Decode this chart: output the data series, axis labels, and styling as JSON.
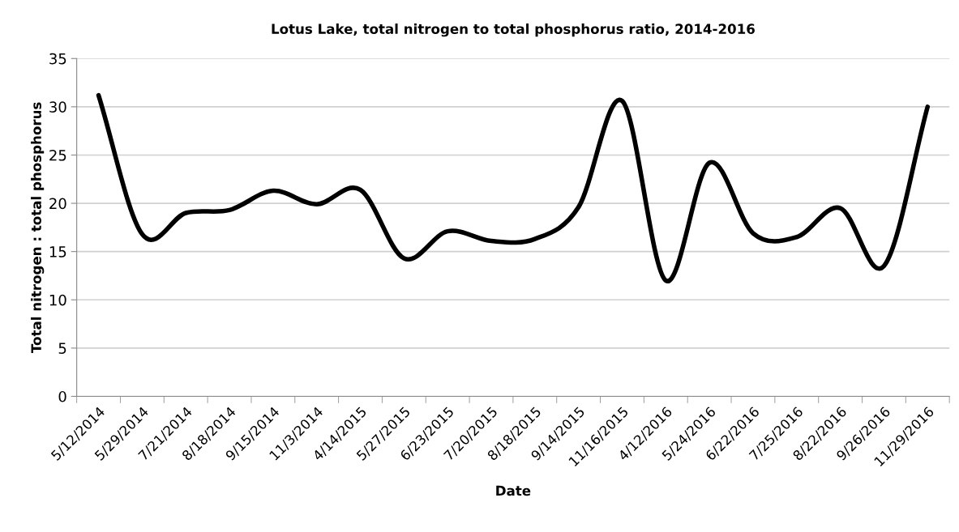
{
  "chart_data": {
    "type": "line",
    "title": "Lotus Lake, total nitrogen to total phosphorus ratio, 2014-2016",
    "xlabel": "Date",
    "ylabel": "Total nitrogen : total phosphorus",
    "categories": [
      "5/12/2014",
      "5/29/2014",
      "7/21/2014",
      "8/18/2014",
      "9/15/2014",
      "11/3/2014",
      "4/14/2015",
      "5/27/2015",
      "6/23/2015",
      "7/20/2015",
      "8/18/2015",
      "9/14/2015",
      "11/16/2015",
      "4/12/2016",
      "5/24/2016",
      "6/22/2016",
      "7/25/2016",
      "8/22/2016",
      "9/26/2016",
      "11/29/2016"
    ],
    "series": [
      {
        "color": "#000000",
        "values": [
          31.2,
          16.8,
          19.0,
          19.3,
          21.3,
          19.9,
          21.4,
          14.3,
          17.1,
          16.1,
          16.3,
          19.6,
          30.6,
          12.0,
          24.2,
          16.9,
          16.5,
          19.5,
          13.5,
          30.0
        ]
      }
    ],
    "ylim": [
      0,
      35
    ],
    "yticks": [
      0,
      5,
      10,
      15,
      20,
      25,
      30,
      35
    ],
    "grid": "y",
    "legend": false,
    "marker": "none",
    "line_style": "solid"
  }
}
